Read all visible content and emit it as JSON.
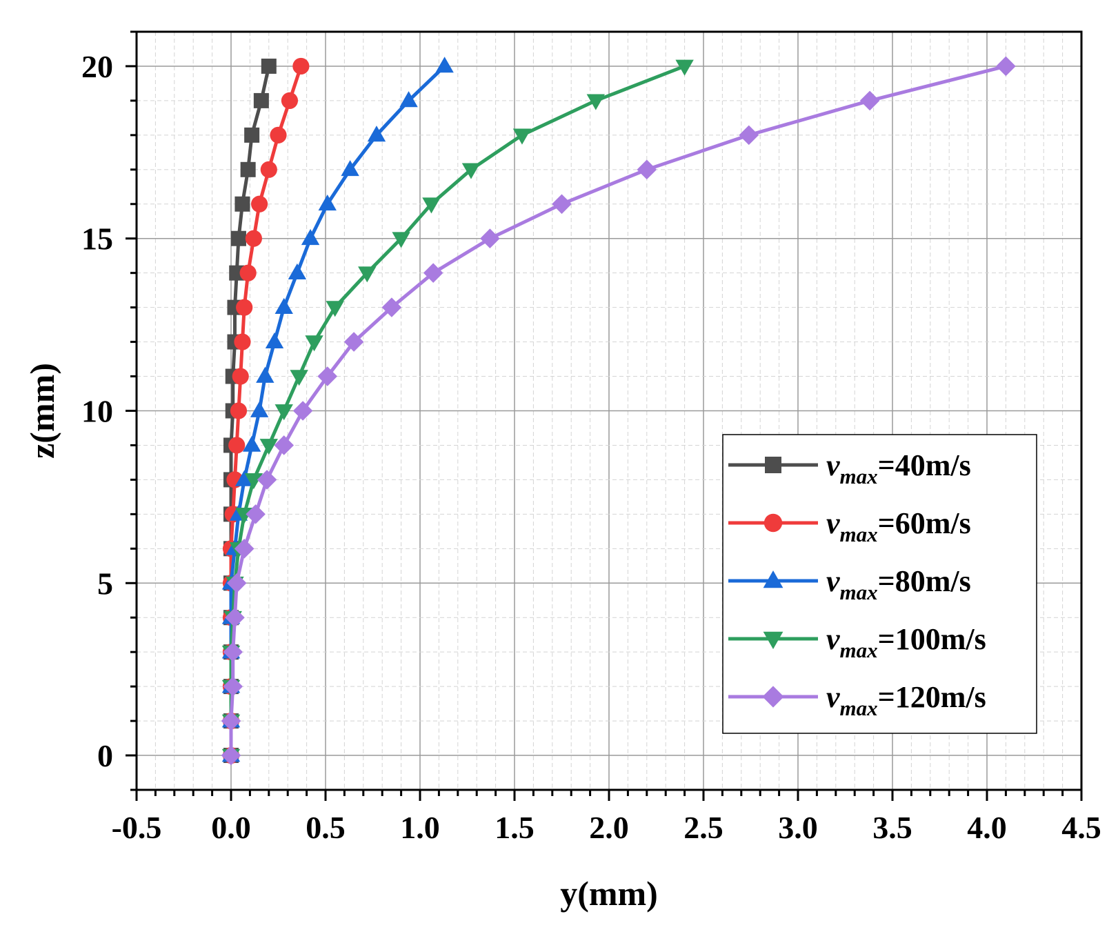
{
  "chart_data": {
    "type": "line",
    "title": "",
    "xlabel": "y(mm)",
    "ylabel": "z(mm)",
    "xlim": [
      -0.5,
      4.5
    ],
    "ylim": [
      -1,
      21
    ],
    "xticks": [
      -0.5,
      0.0,
      0.5,
      1.0,
      1.5,
      2.0,
      2.5,
      3.0,
      3.5,
      4.0,
      4.5
    ],
    "xtick_labels": [
      "-0.5",
      "0.0",
      "0.5",
      "1.0",
      "1.5",
      "2.0",
      "2.5",
      "3.0",
      "3.5",
      "4.0",
      "4.5"
    ],
    "yticks": [
      0,
      5,
      10,
      15,
      20
    ],
    "ytick_labels": [
      "0",
      "5",
      "10",
      "15",
      "20"
    ],
    "grid": true,
    "legend_position": "right",
    "z": [
      0,
      1,
      2,
      3,
      4,
      5,
      6,
      7,
      8,
      9,
      10,
      11,
      12,
      13,
      14,
      15,
      16,
      17,
      18,
      19,
      20
    ],
    "series": [
      {
        "name": "v_max=40m/s",
        "legend_var": "v",
        "legend_sub": "max",
        "legend_rest": "=40m/s",
        "color": "#4d4d4d",
        "marker": "square",
        "y": [
          0.0,
          0.0,
          0.0,
          0.0,
          0.0,
          0.0,
          0.0,
          0.0,
          0.0,
          0.0,
          0.01,
          0.01,
          0.02,
          0.02,
          0.03,
          0.04,
          0.06,
          0.09,
          0.11,
          0.16,
          0.2
        ]
      },
      {
        "name": "v_max=60m/s",
        "legend_var": "v",
        "legend_sub": "max",
        "legend_rest": "=60m/s",
        "color": "#ef3b3b",
        "marker": "circle",
        "y": [
          0.0,
          0.0,
          0.0,
          0.0,
          0.0,
          0.0,
          0.0,
          0.01,
          0.02,
          0.03,
          0.04,
          0.05,
          0.06,
          0.07,
          0.09,
          0.12,
          0.15,
          0.2,
          0.25,
          0.31,
          0.37
        ]
      },
      {
        "name": "v_max=80m/s",
        "legend_var": "v",
        "legend_sub": "max",
        "legend_rest": "=80m/s",
        "color": "#1a6ad8",
        "marker": "triangle-up",
        "y": [
          0.0,
          0.0,
          0.0,
          0.0,
          0.0,
          0.0,
          0.02,
          0.04,
          0.07,
          0.11,
          0.15,
          0.18,
          0.23,
          0.28,
          0.35,
          0.42,
          0.51,
          0.63,
          0.77,
          0.94,
          1.13
        ]
      },
      {
        "name": "v_max=100m/s",
        "legend_var": "v",
        "legend_sub": "max",
        "legend_rest": "=100m/s",
        "color": "#2e9e5e",
        "marker": "triangle-down",
        "y": [
          0.0,
          0.0,
          0.0,
          0.0,
          0.01,
          0.02,
          0.04,
          0.07,
          0.12,
          0.2,
          0.28,
          0.36,
          0.44,
          0.55,
          0.72,
          0.9,
          1.06,
          1.27,
          1.54,
          1.93,
          2.4
        ]
      },
      {
        "name": "v_max=120m/s",
        "legend_var": "v",
        "legend_sub": "max",
        "legend_rest": "=120m/s",
        "color": "#a97be0",
        "marker": "diamond",
        "y": [
          0.0,
          0.0,
          0.01,
          0.01,
          0.02,
          0.03,
          0.07,
          0.13,
          0.19,
          0.28,
          0.38,
          0.51,
          0.65,
          0.85,
          1.07,
          1.37,
          1.75,
          2.2,
          2.74,
          3.38,
          4.1
        ]
      }
    ]
  }
}
